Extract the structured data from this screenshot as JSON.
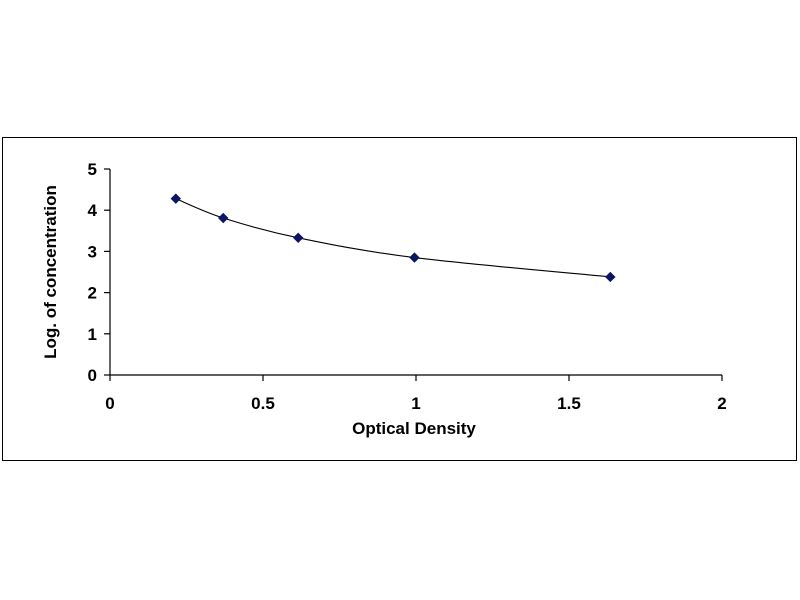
{
  "chart_data": {
    "type": "scatter",
    "title": "",
    "xlabel": "Optical Density",
    "ylabel": "Log. of concentration",
    "xlim": [
      0,
      2
    ],
    "ylim": [
      0,
      5
    ],
    "x_ticks": [
      "0",
      "0.5",
      "1",
      "1.5",
      "2"
    ],
    "y_ticks": [
      "0",
      "1",
      "2",
      "3",
      "4",
      "5"
    ],
    "grid": false,
    "legend": "none",
    "series": [
      {
        "x": [
          0.215,
          0.37,
          0.615,
          0.995,
          1.635
        ],
        "y": [
          4.28,
          3.81,
          3.33,
          2.85,
          2.38
        ],
        "marker": "diamond",
        "trendline": "smooth curve",
        "color": "#0b1660"
      }
    ]
  }
}
